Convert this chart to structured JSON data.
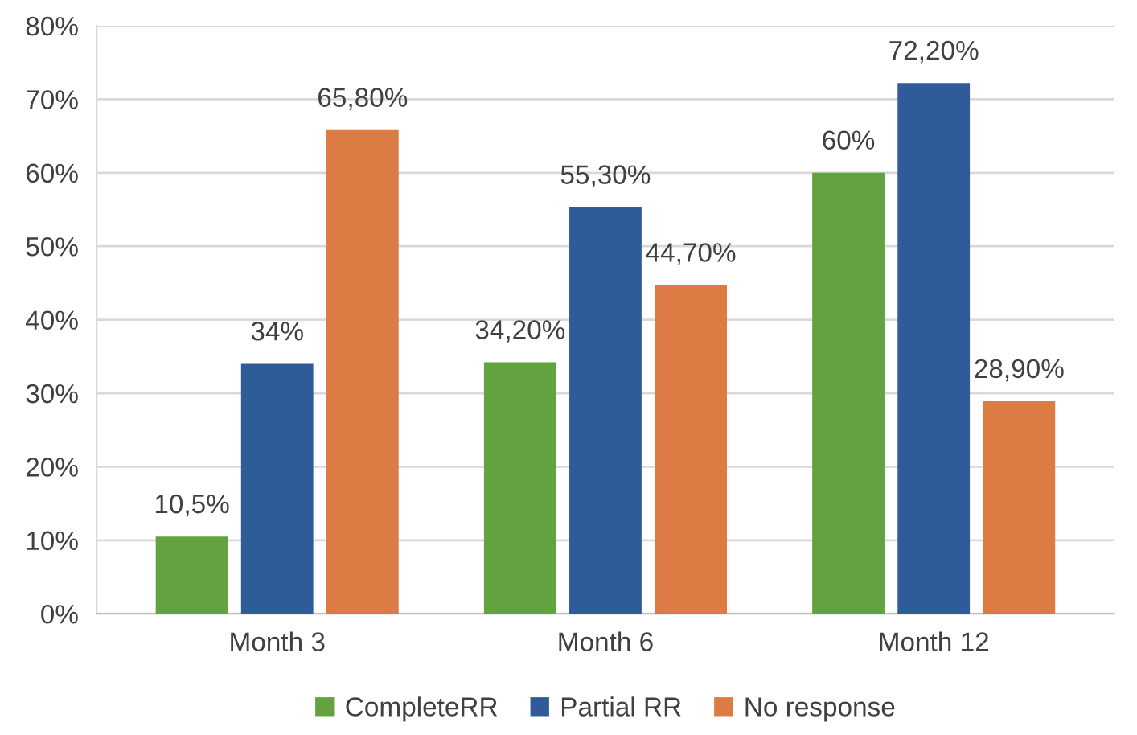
{
  "chart_data": {
    "type": "bar",
    "categories": [
      "Month 3",
      "Month 6",
      "Month 12"
    ],
    "series": [
      {
        "name": "CompleteRR",
        "color": "#63a33f",
        "values": [
          10.5,
          34.2,
          60
        ],
        "value_labels": [
          "10,5%",
          "34,20%",
          "60%"
        ]
      },
      {
        "name": "Partial RR",
        "color": "#2f5c99",
        "values": [
          34,
          55.3,
          72.2
        ],
        "value_labels": [
          "34%",
          "55,30%",
          "72,20%"
        ]
      },
      {
        "name": "No response",
        "color": "#dd7b45",
        "values": [
          65.8,
          44.7,
          28.9
        ],
        "value_labels": [
          "65,80%",
          "44,70%",
          "28,90%"
        ]
      }
    ],
    "ylim": [
      0,
      80
    ],
    "yticks": [
      {
        "value": 0,
        "label": "0%"
      },
      {
        "value": 10,
        "label": "10%"
      },
      {
        "value": 20,
        "label": "20%"
      },
      {
        "value": 30,
        "label": "30%"
      },
      {
        "value": 40,
        "label": "40%"
      },
      {
        "value": 50,
        "label": "50%"
      },
      {
        "value": 60,
        "label": "60%"
      },
      {
        "value": 70,
        "label": "70%"
      },
      {
        "value": 80,
        "label": "80%"
      }
    ],
    "grid": "y",
    "legend": "bottom"
  }
}
